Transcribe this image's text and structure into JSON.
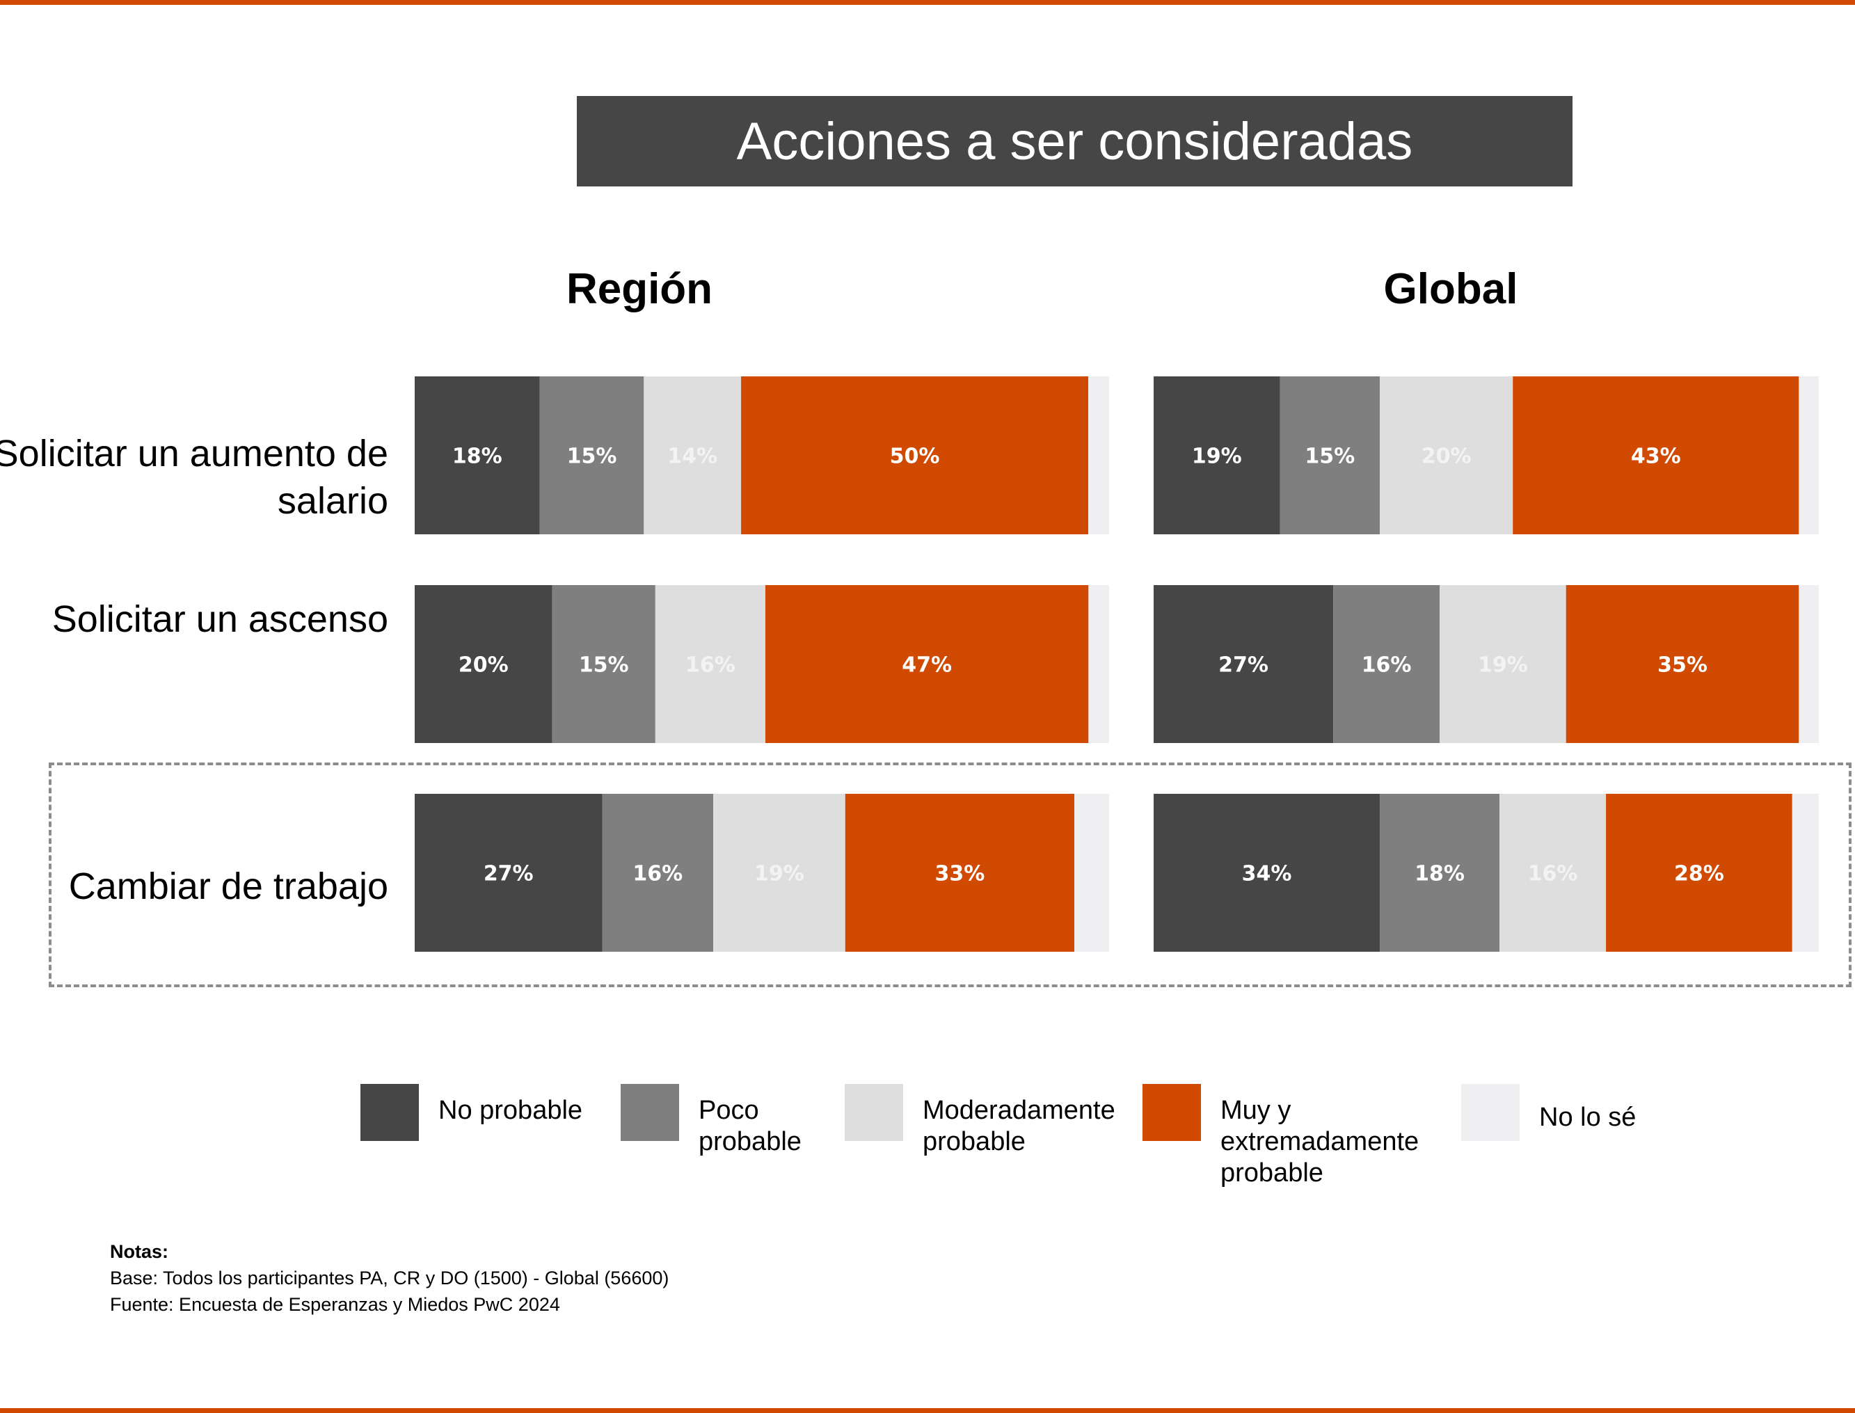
{
  "title": "Acciones a ser consideradas",
  "colors": {
    "accent": "#d04a02",
    "no_probable": "#464646",
    "poco_probable": "#7f7f7f",
    "moderadamente_probable": "#dedede",
    "muy_probable": "#d04a02",
    "no_lo_se": "#efeff1",
    "title_bar": "#464646"
  },
  "chart_data": {
    "type": "bar",
    "orientation": "horizontal",
    "stacked": true,
    "panels": [
      "Región",
      "Global"
    ],
    "categories": [
      "Solicitar un\naumento de salario",
      "Solicitar un\nascenso",
      "Cambiar de trabajo"
    ],
    "series": [
      {
        "name": "No probable",
        "color": "#464646",
        "region": [
          18,
          20,
          27
        ],
        "global": [
          19,
          27,
          34
        ],
        "labels_region": [
          "18%",
          "20%",
          "27%"
        ],
        "labels_global": [
          "19%",
          "27%",
          "34%"
        ]
      },
      {
        "name": "Poco\nprobable",
        "color": "#7f7f7f",
        "region": [
          15,
          15,
          16
        ],
        "global": [
          15,
          16,
          18
        ],
        "labels_region": [
          "15%",
          "15%",
          "16%"
        ],
        "labels_global": [
          "15%",
          "16%",
          "18%"
        ]
      },
      {
        "name": "Moderadamente\nprobable",
        "color": "#dedede",
        "region": [
          14,
          16,
          19
        ],
        "global": [
          20,
          19,
          16
        ],
        "labels_region": [
          "14%",
          "16%",
          "19%"
        ],
        "labels_global": [
          "20%",
          "19%",
          "16%"
        ]
      },
      {
        "name": "Muy y\nextremadamente\nprobable",
        "color": "#d04a02",
        "region": [
          50,
          47,
          33
        ],
        "global": [
          43,
          35,
          28
        ],
        "labels_region": [
          "50%",
          "47%",
          "33%"
        ],
        "labels_global": [
          "43%",
          "35%",
          "28%"
        ]
      },
      {
        "name": "No lo sé",
        "color": "#efeff1",
        "region": [
          3,
          3,
          5
        ],
        "global": [
          3,
          3,
          4
        ],
        "labels_region": [
          "",
          "",
          ""
        ],
        "labels_global": [
          "",
          "",
          ""
        ]
      }
    ],
    "highlighted_category": "Cambiar de trabajo",
    "legend_position": "bottom"
  },
  "notes": {
    "heading": "Notas:",
    "base": "Base: Todos los participantes PA, CR y DO (1500) - Global (56600)",
    "source": "Fuente: Encuesta de Esperanzas y Miedos PwC 2024"
  }
}
